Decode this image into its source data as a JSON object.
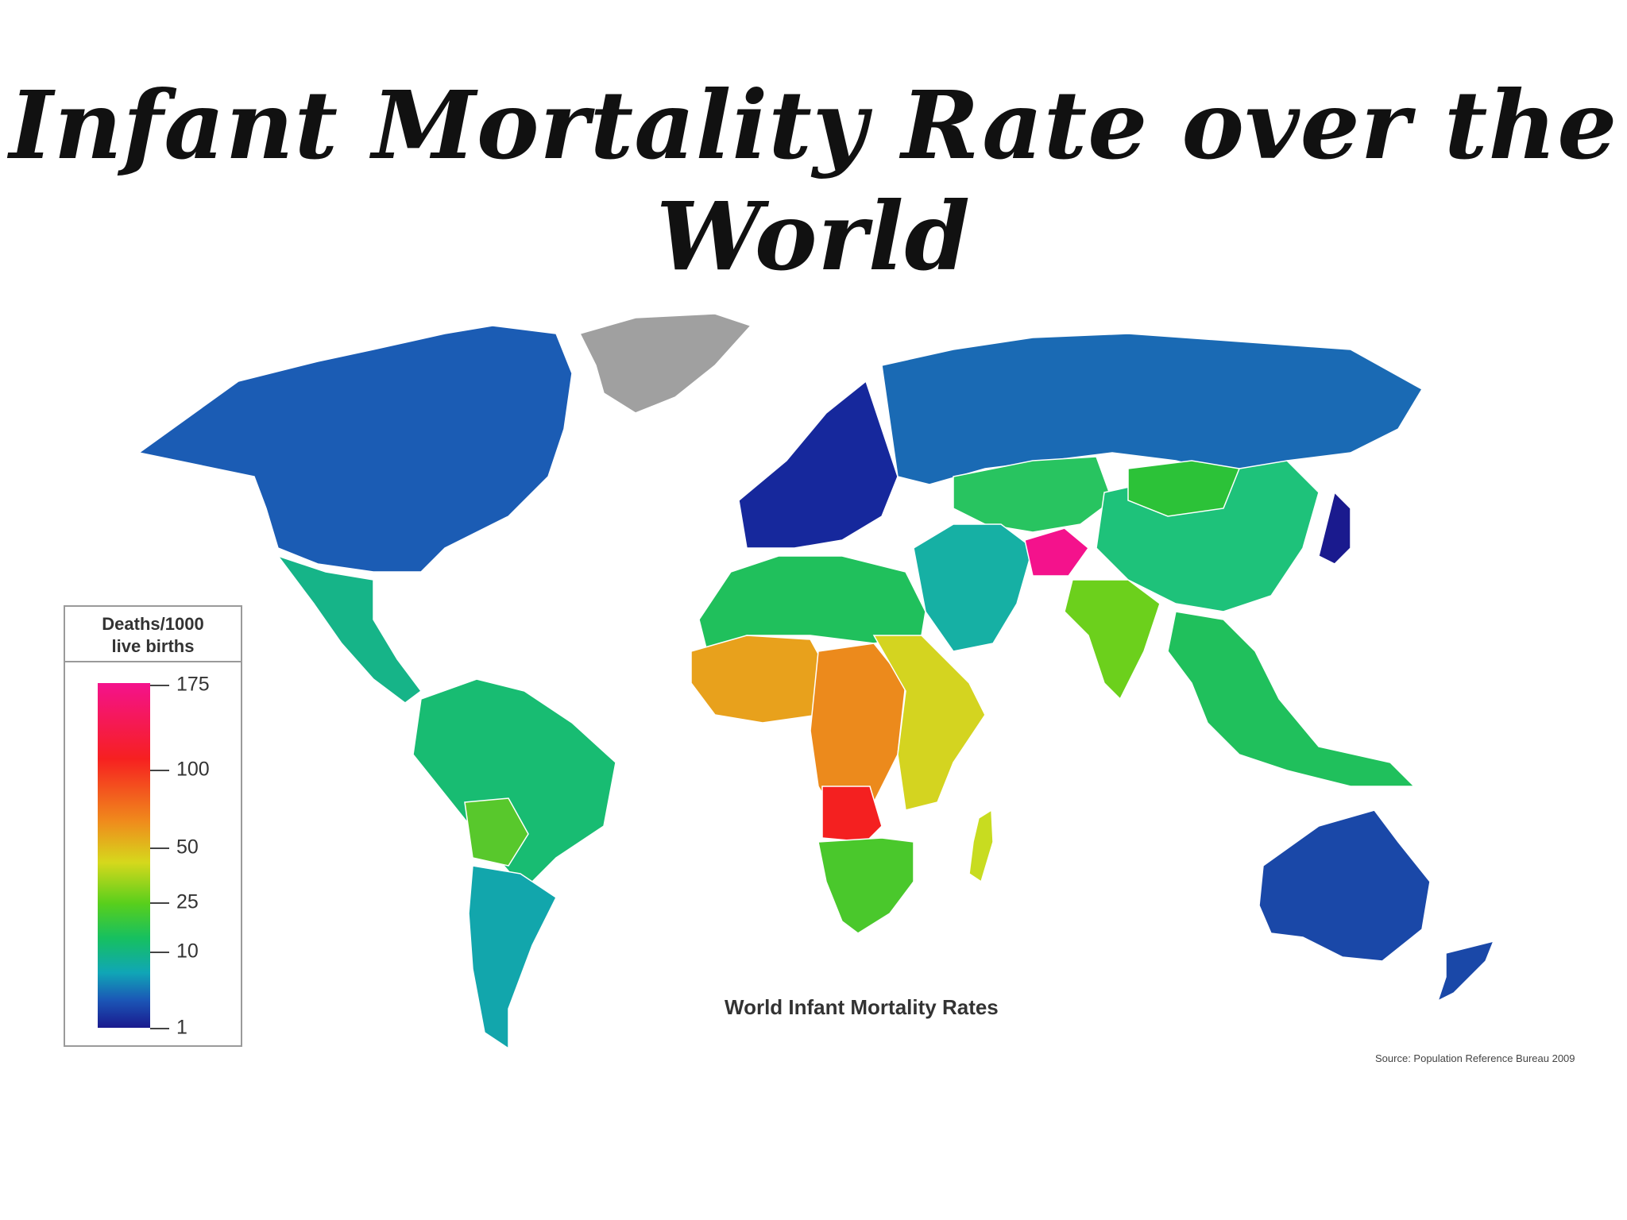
{
  "title": "Infant Mortality Rate over the World",
  "map": {
    "caption": "World Infant Mortality Rates",
    "source": "Source: Population Reference Bureau 2009",
    "legend": {
      "title_line1": "Deaths/1000",
      "title_line2": "live births",
      "ticks": [
        "175",
        "100",
        "50",
        "25",
        "10",
        "1"
      ],
      "scale_colors": [
        "#f4128c",
        "#f62020",
        "#f08a1c",
        "#d6d81c",
        "#58cf1c",
        "#16c060",
        "#10a6b6",
        "#1b56b6",
        "#1a1a8e"
      ]
    },
    "regions": [
      {
        "name": "North America",
        "color": "#1b5cb4"
      },
      {
        "name": "Greenland",
        "color": "#a0a0a0"
      },
      {
        "name": "Mexico & Central America",
        "color": "#16b488"
      },
      {
        "name": "South America",
        "color": "#18bc72"
      },
      {
        "name": "Bolivia",
        "color": "#58c82c"
      },
      {
        "name": "Southern Cone",
        "color": "#12a6ac"
      },
      {
        "name": "Western Europe",
        "color": "#16289c"
      },
      {
        "name": "Russia",
        "color": "#1a6ab4"
      },
      {
        "name": "Central Asia",
        "color": "#28c460"
      },
      {
        "name": "China",
        "color": "#1ec27a"
      },
      {
        "name": "Mongolia",
        "color": "#2cc238"
      },
      {
        "name": "Japan",
        "color": "#1a1a8e"
      },
      {
        "name": "Middle East",
        "color": "#16b0a4"
      },
      {
        "name": "Afghanistan",
        "color": "#f4128c"
      },
      {
        "name": "India",
        "color": "#6cd01c"
      },
      {
        "name": "Southeast Asia",
        "color": "#20c05c"
      },
      {
        "name": "North Africa",
        "color": "#20c05c"
      },
      {
        "name": "West Africa",
        "color": "#e8a11c"
      },
      {
        "name": "Central Africa",
        "color": "#ec8a1c"
      },
      {
        "name": "East Africa",
        "color": "#d4d420"
      },
      {
        "name": "Angola",
        "color": "#f42020"
      },
      {
        "name": "Southern Africa",
        "color": "#4ac82c"
      },
      {
        "name": "Madagascar",
        "color": "#c8dc20"
      },
      {
        "name": "Australia",
        "color": "#1a48a8"
      },
      {
        "name": "New Zealand",
        "color": "#1a48a8"
      }
    ]
  }
}
